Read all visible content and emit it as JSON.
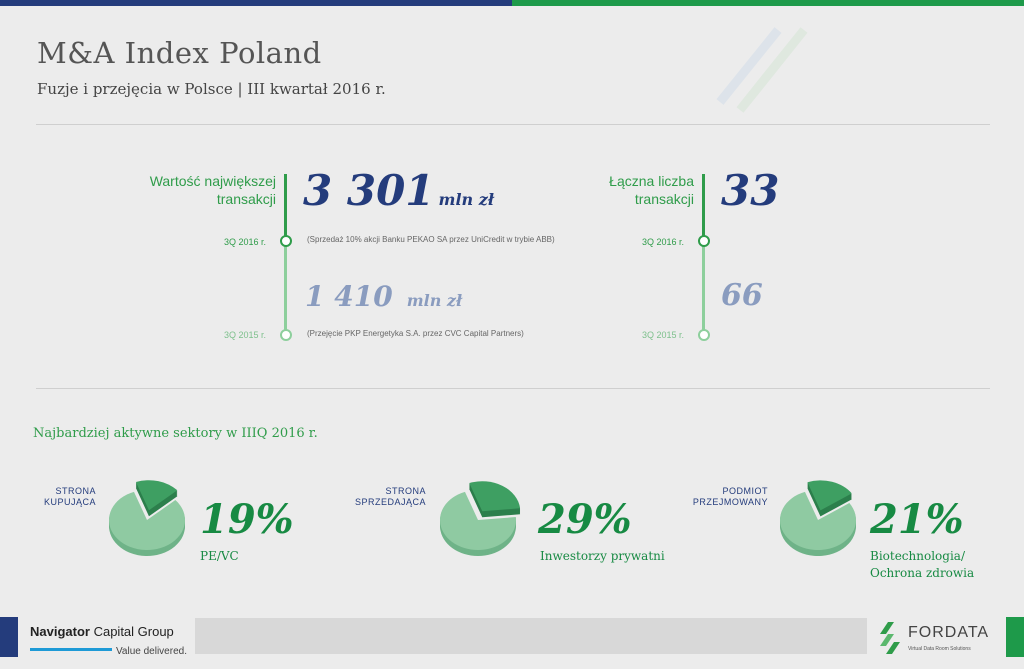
{
  "header": {
    "title": "M&A Index Poland",
    "subtitle": "Fuzje i przejęcia w Polsce | III kwartał 2016 r."
  },
  "largest_deal": {
    "label_line1": "Wartość największej",
    "label_line2": "transakcji",
    "q_2016": "3Q 2016 r.",
    "q_2015": "3Q 2015 r.",
    "value_2016": "3 301",
    "value_2015": "1 410",
    "unit": "mln zł",
    "note_2016": "(Sprzedaż 10% akcji Banku PEKAO SA przez UniCredit w trybie ABB)",
    "note_2015": "(Przejęcie PKP Energetyka S.A. przez CVC Capital Partners)"
  },
  "deal_count": {
    "label_line1": "Łączna liczba",
    "label_line2": "transakcji",
    "q_2016": "3Q 2016 r.",
    "q_2015": "3Q 2015 r.",
    "value_2016": "33",
    "value_2015": "66"
  },
  "sectors": {
    "title": "Najbardziej aktywne sektory w IIIQ 2016 r.",
    "items": [
      {
        "label_line1": "STRONA",
        "label_line2": "KUPUJĄCA",
        "percent": "19%",
        "share": 0.19,
        "desc_line1": "PE/VC",
        "desc_line2": ""
      },
      {
        "label_line1": "STRONA",
        "label_line2": "SPRZEDAJĄCA",
        "percent": "29%",
        "share": 0.29,
        "desc_line1": "Inwestorzy prywatni",
        "desc_line2": ""
      },
      {
        "label_line1": "PODMIOT",
        "label_line2": "PRZEJMOWANY",
        "percent": "21%",
        "share": 0.21,
        "desc_line1": "Biotechnologia/",
        "desc_line2": "Ochrona zdrowia"
      }
    ]
  },
  "footer": {
    "ncg_name_bold": "Navigator",
    "ncg_name_light": " Capital Group",
    "ncg_tagline": "Value delivered.",
    "fd_name": "FORDATA",
    "fd_tagline": "Virtual Data Room Solutions"
  },
  "colors": {
    "navy": "#243c7c",
    "green": "#2f9c4a",
    "pie_light": "#8fcaa2",
    "pie_dark": "#3e9f62"
  }
}
